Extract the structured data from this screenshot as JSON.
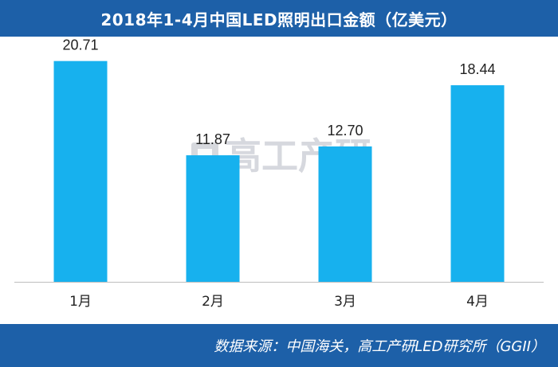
{
  "title": "2018年1-4月中国LED照明出口金额（亿美元）",
  "source": "数据来源：中国海关，高工产研LED研究所（GGII）",
  "watermark": {
    "text": "高工产研"
  },
  "colors": {
    "header": "#1d60a8",
    "bar": "#17b1ee",
    "axis": "#bdbdbd",
    "text": "#222222"
  },
  "chart_data": {
    "type": "bar",
    "title": "2018年1-4月中国LED照明出口金额（亿美元）",
    "categories": [
      "1月",
      "2月",
      "3月",
      "4月"
    ],
    "values": [
      20.71,
      11.87,
      12.7,
      18.44
    ],
    "value_labels": [
      "20.71",
      "11.87",
      "12.70",
      "18.44"
    ],
    "ylim": [
      0,
      23
    ],
    "grid": false,
    "legend": "none"
  }
}
